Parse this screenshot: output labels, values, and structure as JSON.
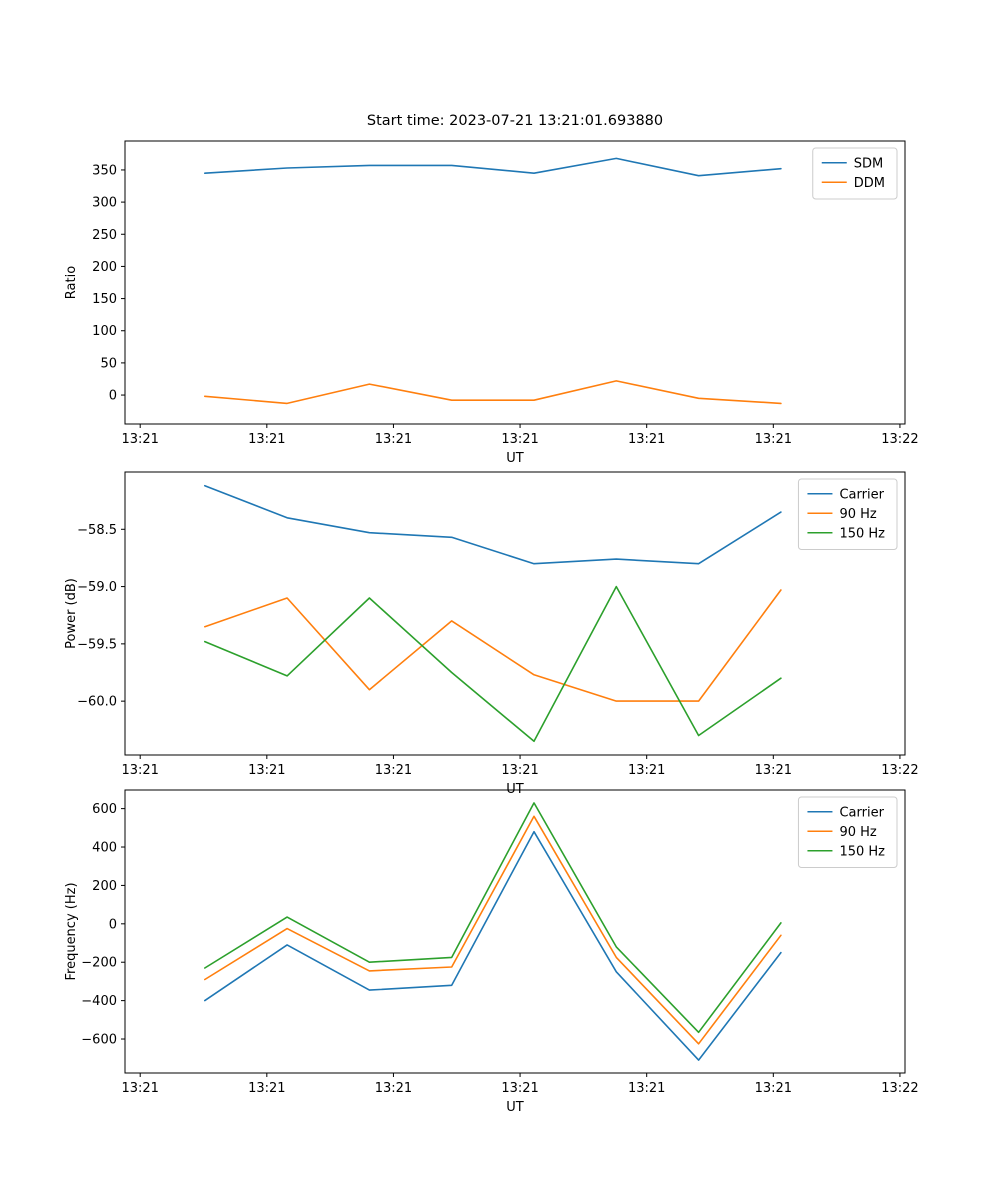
{
  "figure": {
    "title": "Start time: 2023-07-21 13:21:01.693880",
    "background_color": "#ffffff"
  },
  "chart_data": [
    {
      "type": "line",
      "name": "ratio",
      "xlabel": "UT",
      "ylabel": "Ratio",
      "x_unit": "seconds after 13:21:00",
      "x": [
        5.1,
        11.6,
        18.1,
        24.6,
        31.1,
        37.6,
        44.1,
        50.6
      ],
      "xlim": [
        -1.2,
        60.4
      ],
      "xticks": [
        0,
        10,
        20,
        30,
        40,
        50,
        60
      ],
      "xtick_labels": [
        "13:21",
        "13:21",
        "13:21",
        "13:21",
        "13:21",
        "13:21",
        "13:22"
      ],
      "ylim": [
        -45,
        395
      ],
      "yticks": [
        0,
        50,
        100,
        150,
        200,
        250,
        300,
        350
      ],
      "ytick_labels": [
        "0",
        "50",
        "100",
        "150",
        "200",
        "250",
        "300",
        "350"
      ],
      "grid": false,
      "legend_position": "upper right",
      "series": [
        {
          "name": "SDM",
          "color": "#1f77b4",
          "values": [
            345,
            353,
            357,
            357,
            345,
            368,
            341,
            352
          ]
        },
        {
          "name": "DDM",
          "color": "#ff7f0e",
          "values": [
            -2,
            -13,
            17,
            -8,
            -8,
            22,
            -5,
            -13
          ]
        }
      ]
    },
    {
      "type": "line",
      "name": "power",
      "xlabel": "UT",
      "ylabel": "Power (dB)",
      "x_unit": "seconds after 13:21:00",
      "x": [
        5.1,
        11.6,
        18.1,
        24.6,
        31.1,
        37.6,
        44.1,
        50.6
      ],
      "xlim": [
        -1.2,
        60.4
      ],
      "xticks": [
        0,
        10,
        20,
        30,
        40,
        50,
        60
      ],
      "xtick_labels": [
        "13:21",
        "13:21",
        "13:21",
        "13:21",
        "13:21",
        "13:21",
        "13:22"
      ],
      "ylim": [
        -60.47,
        -58.0
      ],
      "yticks": [
        -60.0,
        -59.5,
        -59.0,
        -58.5
      ],
      "ytick_labels": [
        "−60.0",
        "−59.5",
        "−59.0",
        "−58.5"
      ],
      "grid": false,
      "legend_position": "upper right",
      "series": [
        {
          "name": "Carrier",
          "color": "#1f77b4",
          "values": [
            -58.12,
            -58.4,
            -58.53,
            -58.57,
            -58.8,
            -58.76,
            -58.8,
            -58.35
          ]
        },
        {
          "name": "90 Hz",
          "color": "#ff7f0e",
          "values": [
            -59.35,
            -59.1,
            -59.9,
            -59.3,
            -59.77,
            -60.0,
            -60.0,
            -59.03
          ]
        },
        {
          "name": "150 Hz",
          "color": "#2ca02c",
          "values": [
            -59.48,
            -59.78,
            -59.1,
            -59.75,
            -60.35,
            -59.0,
            -60.3,
            -59.8
          ]
        }
      ]
    },
    {
      "type": "line",
      "name": "frequency",
      "xlabel": "UT",
      "ylabel": "Frequency (Hz)",
      "x_unit": "seconds after 13:21:00",
      "x": [
        5.1,
        11.6,
        18.1,
        24.6,
        31.1,
        37.6,
        44.1,
        50.6
      ],
      "xlim": [
        -1.2,
        60.4
      ],
      "xticks": [
        0,
        10,
        20,
        30,
        40,
        50,
        60
      ],
      "xtick_labels": [
        "13:21",
        "13:21",
        "13:21",
        "13:21",
        "13:21",
        "13:21",
        "13:22"
      ],
      "ylim": [
        -777,
        697
      ],
      "yticks": [
        -600,
        -400,
        -200,
        0,
        200,
        400,
        600
      ],
      "ytick_labels": [
        "−600",
        "−400",
        "−200",
        "0",
        "200",
        "400",
        "600"
      ],
      "grid": false,
      "legend_position": "upper right",
      "series": [
        {
          "name": "Carrier",
          "color": "#1f77b4",
          "values": [
            -400,
            -110,
            -345,
            -320,
            480,
            -250,
            -710,
            -150
          ]
        },
        {
          "name": "90 Hz",
          "color": "#ff7f0e",
          "values": [
            -290,
            -25,
            -245,
            -225,
            560,
            -175,
            -625,
            -60
          ]
        },
        {
          "name": "150 Hz",
          "color": "#2ca02c",
          "values": [
            -230,
            35,
            -200,
            -175,
            630,
            -120,
            -565,
            5
          ]
        }
      ]
    }
  ]
}
